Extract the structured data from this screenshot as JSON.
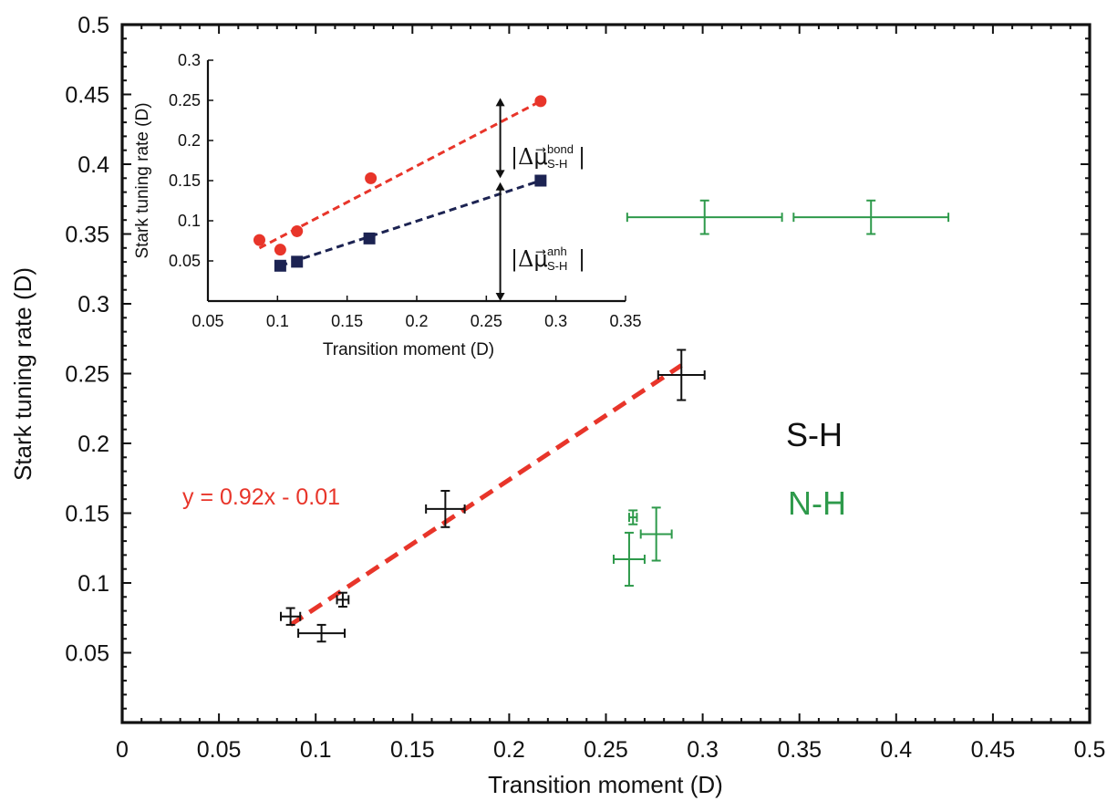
{
  "chart_data": {
    "type": "scatter",
    "main": {
      "xlabel": "Transition moment (D)",
      "ylabel": "Stark tuning rate (D)",
      "xlim": [
        0,
        0.5
      ],
      "ylim": [
        0,
        0.5
      ],
      "xticks": [
        "0",
        "0.05",
        "0.1",
        "0.15",
        "0.2",
        "0.25",
        "0.3",
        "0.35",
        "0.4",
        "0.45",
        "0.5"
      ],
      "yticks": [
        "0.05",
        "0.1",
        "0.15",
        "0.2",
        "0.25",
        "0.3",
        "0.35",
        "0.4",
        "0.45",
        "0.5"
      ],
      "series": [
        {
          "name": "S-H",
          "color": "#111111",
          "points": [
            {
              "x": 0.087,
              "y": 0.076,
              "xerr": 0.005,
              "yerr": 0.006
            },
            {
              "x": 0.103,
              "y": 0.064,
              "xerr": 0.012,
              "yerr": 0.006
            },
            {
              "x": 0.114,
              "y": 0.088,
              "xerr": 0.003,
              "yerr": 0.005
            },
            {
              "x": 0.167,
              "y": 0.153,
              "xerr": 0.01,
              "yerr": 0.013
            },
            {
              "x": 0.289,
              "y": 0.249,
              "xerr": 0.012,
              "yerr": 0.018
            }
          ]
        },
        {
          "name": "N-H",
          "color": "#2e9a4b",
          "points": [
            {
              "x": 0.262,
              "y": 0.117,
              "xerr": 0.008,
              "yerr": 0.019
            },
            {
              "x": 0.264,
              "y": 0.147,
              "xerr": 0.002,
              "yerr": 0.005
            },
            {
              "x": 0.276,
              "y": 0.135,
              "xerr": 0.008,
              "yerr": 0.019
            },
            {
              "x": 0.301,
              "y": 0.362,
              "xerr": 0.04,
              "yerr": 0.012
            },
            {
              "x": 0.387,
              "y": 0.362,
              "xerr": 0.04,
              "yerr": 0.012
            }
          ]
        }
      ],
      "fit": {
        "slope": 0.92,
        "intercept": -0.01,
        "x_range": [
          0.087,
          0.289
        ],
        "color": "#e8352a",
        "label": "y = 0.92x - 0.01"
      }
    },
    "inset": {
      "xlabel": "Transition moment (D)",
      "ylabel": "Stark tuning rate (D)",
      "xlim": [
        0.05,
        0.35
      ],
      "ylim": [
        0,
        0.3
      ],
      "xticks": [
        "0.05",
        "0.1",
        "0.15",
        "0.2",
        "0.25",
        "0.3",
        "0.35"
      ],
      "yticks": [
        "0.05",
        "0.1",
        "0.15",
        "0.2",
        "0.25",
        "0.3"
      ],
      "series": [
        {
          "name": "bond",
          "color": "#e8352a",
          "points": [
            {
              "x": 0.087,
              "y": 0.076
            },
            {
              "x": 0.102,
              "y": 0.064
            },
            {
              "x": 0.114,
              "y": 0.087
            },
            {
              "x": 0.167,
              "y": 0.153
            },
            {
              "x": 0.289,
              "y": 0.249
            }
          ]
        },
        {
          "name": "anh",
          "color": "#1c2352",
          "points": [
            {
              "x": 0.102,
              "y": 0.044
            },
            {
              "x": 0.114,
              "y": 0.049
            },
            {
              "x": 0.166,
              "y": 0.078
            },
            {
              "x": 0.289,
              "y": 0.15
            }
          ]
        }
      ],
      "fit_lines": [
        {
          "color": "#e8352a",
          "x": [
            0.087,
            0.289
          ],
          "y": [
            0.066,
            0.249
          ]
        },
        {
          "color": "#1c2352",
          "x": [
            0.102,
            0.289
          ],
          "y": [
            0.044,
            0.15
          ]
        }
      ],
      "arrows": [
        {
          "x": 0.26,
          "y1": 0.153,
          "y2": 0.253
        },
        {
          "x": 0.26,
          "y1": 0.0,
          "y2": 0.148
        }
      ],
      "annotations": {
        "bond": {
          "symbol": "|Δμ⃗",
          "sup": "bond",
          "sub": "S-H",
          "end": "|"
        },
        "anh": {
          "symbol": "|Δμ⃗",
          "sup": "anh",
          "sub": "S-H",
          "end": "|"
        }
      }
    },
    "legend": {
      "sh": {
        "text": "S-H",
        "color": "#111111"
      },
      "nh": {
        "text": "N-H",
        "color": "#2e9a4b"
      }
    }
  }
}
